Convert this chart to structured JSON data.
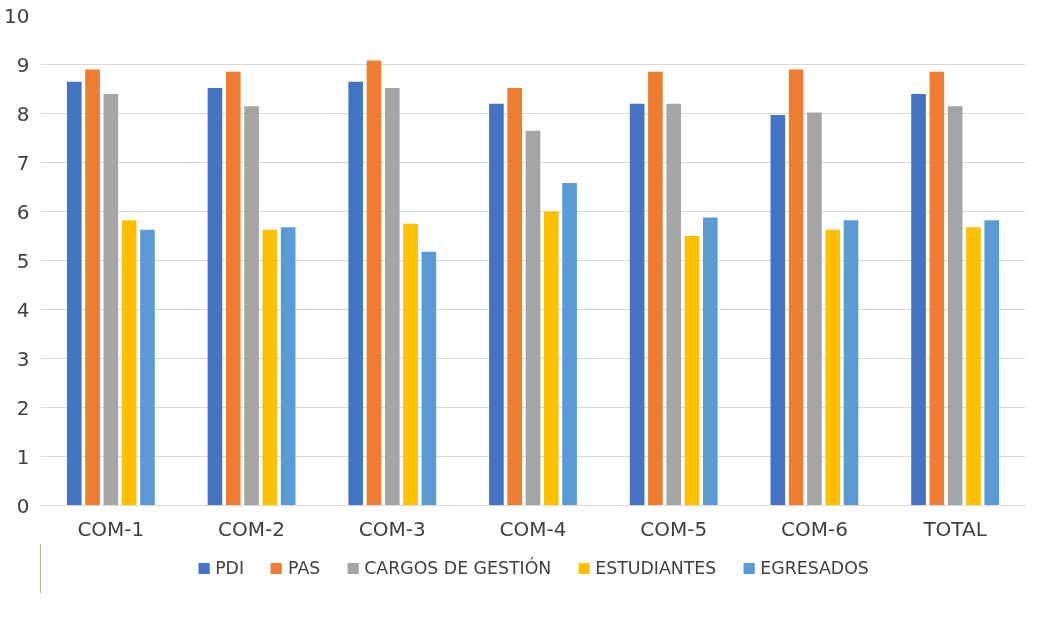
{
  "chart_data": {
    "type": "bar",
    "categories": [
      "COM-1",
      "COM-2",
      "COM-3",
      "COM-4",
      "COM-5",
      "COM-6",
      "TOTAL"
    ],
    "series": [
      {
        "name": "PDI",
        "color": "#4472c4",
        "values": [
          8.65,
          8.52,
          8.65,
          8.2,
          8.2,
          7.97,
          8.4
        ]
      },
      {
        "name": "PAS",
        "color": "#ed7d31",
        "values": [
          8.9,
          8.85,
          9.08,
          8.52,
          8.85,
          8.9,
          8.85
        ]
      },
      {
        "name": "CARGOS DE GESTIÓN",
        "color": "#a5a5a5",
        "values": [
          8.4,
          8.15,
          8.52,
          7.65,
          8.2,
          8.02,
          8.15
        ]
      },
      {
        "name": "ESTUDIANTES",
        "color": "#ffc000",
        "values": [
          5.82,
          5.63,
          5.75,
          6.0,
          5.5,
          5.63,
          5.68
        ]
      },
      {
        "name": "EGRESADOS",
        "color": "#5b9bd5",
        "values": [
          5.63,
          5.68,
          5.18,
          6.58,
          5.88,
          5.82,
          5.82
        ]
      }
    ],
    "ylim": [
      0,
      10
    ],
    "yticks": [
      0,
      1,
      2,
      3,
      4,
      5,
      6,
      7,
      8,
      9,
      10
    ],
    "grid": "y",
    "legend": "bottom"
  }
}
